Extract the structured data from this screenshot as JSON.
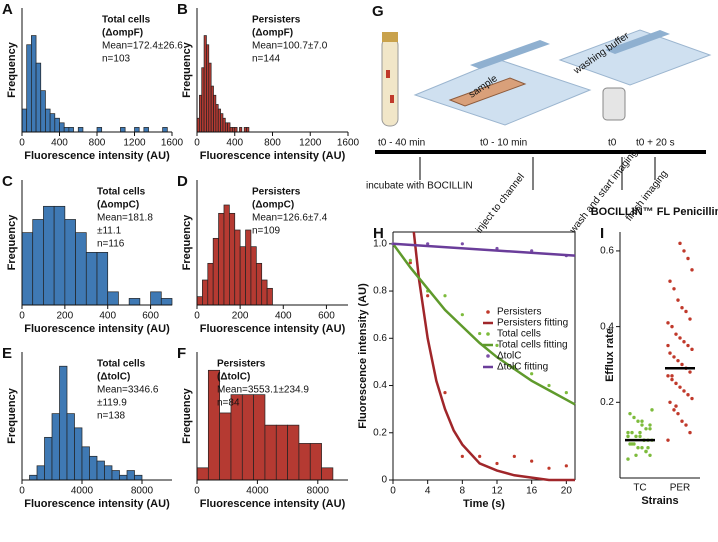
{
  "chart_data": [
    {
      "type": "histogram",
      "panel": "A",
      "xlabel": "Fluorescence intensity (AU)",
      "ylabel": "Frequency",
      "annotations": [
        "Total cells",
        "(ΔompF)",
        "Mean=172.4±26.6",
        "n=103"
      ],
      "color": "#3f79b4",
      "bins": [
        0,
        50,
        100,
        150,
        200,
        250,
        300,
        350,
        400,
        450,
        500,
        550,
        600,
        650,
        700,
        750,
        800,
        850,
        900,
        950,
        1000,
        1050,
        1100,
        1150,
        1200,
        1250,
        1300,
        1350,
        1400,
        1450,
        1500,
        1550,
        1600
      ],
      "counts": [
        0.05,
        0.19,
        0.21,
        0.15,
        0.09,
        0.05,
        0.04,
        0.03,
        0.02,
        0.01,
        0.01,
        0,
        0.01,
        0,
        0,
        0,
        0.01,
        0,
        0,
        0,
        0,
        0.01,
        0,
        0,
        0.01,
        0,
        0.01,
        0,
        0,
        0,
        0.01,
        0
      ],
      "xlim": [
        0,
        1600
      ],
      "xticks": [
        0,
        400,
        800,
        1200,
        1600
      ],
      "ylim": [
        0,
        0.27
      ]
    },
    {
      "type": "histogram",
      "panel": "B",
      "xlabel": "Fluorescence intensity (AU)",
      "ylabel": "Frequency",
      "annotations": [
        "Persisters",
        "(ΔompF)",
        "Mean=100.7±7.0",
        "n=144"
      ],
      "color": "#b53a32",
      "bins": [
        0,
        25,
        50,
        75,
        100,
        125,
        150,
        175,
        200,
        225,
        250,
        275,
        300,
        325,
        350,
        375,
        400,
        425,
        450,
        475,
        500,
        525,
        550
      ],
      "counts": [
        0.03,
        0.08,
        0.14,
        0.21,
        0.19,
        0.15,
        0.1,
        0.08,
        0.06,
        0.05,
        0.04,
        0.03,
        0.02,
        0.02,
        0.01,
        0.01,
        0.01,
        0,
        0.01,
        0,
        0.01,
        0.01
      ],
      "xlim": [
        0,
        1600
      ],
      "xticks": [
        0,
        400,
        800,
        1200,
        1600
      ],
      "ylim": [
        0,
        0.27
      ]
    },
    {
      "type": "histogram",
      "panel": "C",
      "xlabel": "Fluorescence intensity (AU)",
      "ylabel": "Frequency",
      "annotations": [
        "Total cells",
        "(ΔompC)",
        "Mean=181.8",
        "±11.1",
        "n=116"
      ],
      "color": "#3f79b4",
      "bins": [
        0,
        50,
        100,
        150,
        200,
        250,
        300,
        350,
        400,
        450,
        500,
        550,
        600,
        650,
        700
      ],
      "counts": [
        0.11,
        0.13,
        0.15,
        0.15,
        0.13,
        0.11,
        0.08,
        0.08,
        0.02,
        0,
        0.01,
        0,
        0.02,
        0.01
      ],
      "xlim": [
        0,
        700
      ],
      "xticks": [
        0,
        200,
        400,
        600
      ],
      "ylim": [
        0,
        0.19
      ]
    },
    {
      "type": "histogram",
      "panel": "D",
      "xlabel": "Fluorescence intensity (AU)",
      "ylabel": "Frequency",
      "annotations": [
        "Persisters",
        "(ΔompC)",
        "Mean=126.6±7.4",
        "n=109"
      ],
      "color": "#b53a32",
      "bins": [
        0,
        25,
        50,
        75,
        100,
        125,
        150,
        175,
        200,
        225,
        250,
        275,
        300,
        325,
        350
      ],
      "counts": [
        0.01,
        0.03,
        0.05,
        0.08,
        0.11,
        0.12,
        0.11,
        0.09,
        0.07,
        0.09,
        0.07,
        0.05,
        0.03,
        0.02
      ],
      "xlim": [
        0,
        700
      ],
      "xticks": [
        0,
        200,
        400,
        600
      ],
      "ylim": [
        0,
        0.15
      ]
    },
    {
      "type": "histogram",
      "panel": "E",
      "xlabel": "Fluorescence intensity (AU)",
      "ylabel": "Frequency",
      "annotations": [
        "Total cells",
        "(ΔtolC)",
        "Mean=3346.6",
        "±119.9",
        "n=138"
      ],
      "color": "#3f79b4",
      "bins": [
        0,
        500,
        1000,
        1500,
        2000,
        2500,
        3000,
        3500,
        4000,
        4500,
        5000,
        5500,
        6000,
        6500,
        7000,
        7500,
        8000
      ],
      "counts": [
        0,
        0.01,
        0.03,
        0.09,
        0.14,
        0.24,
        0.14,
        0.11,
        0.07,
        0.05,
        0.04,
        0.03,
        0.02,
        0.01,
        0.02,
        0.01
      ],
      "xlim": [
        0,
        10000
      ],
      "xticks": [
        0,
        4000,
        8000
      ],
      "ylim": [
        0,
        0.27
      ]
    },
    {
      "type": "histogram",
      "panel": "F",
      "xlabel": "Fluorescence intensity (AU)",
      "ylabel": "Frequency",
      "annotations": [
        "Persisters",
        "(ΔtolC)",
        "Mean=3553.1±234.9",
        "n=84"
      ],
      "color": "#b53a32",
      "bins": [
        0,
        750,
        1500,
        2250,
        3000,
        3750,
        4500,
        5250,
        6000,
        6750,
        7500,
        8250,
        9000
      ],
      "counts": [
        0.02,
        0.18,
        0.11,
        0.14,
        0.14,
        0.14,
        0.09,
        0.09,
        0.09,
        0.06,
        0.06,
        0.02
      ],
      "xlim": [
        0,
        10000
      ],
      "xticks": [
        0,
        4000,
        8000
      ],
      "ylim": [
        0,
        0.21
      ]
    },
    {
      "type": "line",
      "panel": "H",
      "xlabel": "Time (s)",
      "ylabel": "Fluorescence intensity (AU)",
      "xlim": [
        0,
        21
      ],
      "xticks": [
        0,
        4,
        8,
        12,
        16,
        20
      ],
      "ylim": [
        0,
        1.05
      ],
      "yticks": [
        0,
        0.2,
        0.4,
        0.6,
        0.8,
        {
          "value": 1,
          "label": "1.0"
        }
      ],
      "series": [
        {
          "name": "Persisters",
          "color": "#c0392b",
          "style": "points",
          "x": [
            2,
            4,
            6,
            8,
            10,
            12,
            14,
            16,
            18,
            20
          ],
          "values": [
            0.92,
            0.78,
            0.37,
            0.1,
            0.1,
            0.07,
            0.1,
            0.08,
            0.05,
            0.06
          ]
        },
        {
          "name": "Persisters fitting",
          "color": "#a0262a",
          "style": "line",
          "x": [
            2.4,
            3,
            4,
            5,
            6,
            7,
            8,
            10,
            12,
            14,
            16,
            18,
            21
          ],
          "values": [
            1.05,
            0.85,
            0.6,
            0.42,
            0.3,
            0.21,
            0.15,
            0.07,
            0.04,
            0.02,
            0.01,
            0,
            0
          ]
        },
        {
          "name": "Total cells",
          "color": "#7dbb3c",
          "style": "points",
          "x": [
            0,
            2,
            4,
            6,
            8,
            10,
            12,
            14,
            16,
            18,
            20
          ],
          "values": [
            1,
            0.93,
            0.8,
            0.78,
            0.7,
            0.62,
            0.57,
            0.48,
            0.45,
            0.4,
            0.37
          ]
        },
        {
          "name": "Total cells fitting",
          "color": "#5f9a2c",
          "style": "line",
          "x": [
            0,
            2,
            4,
            6,
            8,
            10,
            12,
            14,
            16,
            18,
            20,
            21
          ],
          "values": [
            1,
            0.9,
            0.81,
            0.72,
            0.65,
            0.58,
            0.52,
            0.47,
            0.42,
            0.38,
            0.34,
            0.32
          ]
        },
        {
          "name": "ΔtolC",
          "color": "#7b4fa8",
          "style": "points",
          "x": [
            0,
            4,
            8,
            12,
            16,
            20
          ],
          "values": [
            1,
            1,
            1,
            0.98,
            0.97,
            0.95
          ]
        },
        {
          "name": "ΔtolC fitting",
          "color": "#6a3d9a",
          "style": "line",
          "x": [
            0,
            21
          ],
          "values": [
            1,
            0.95
          ]
        }
      ]
    },
    {
      "type": "strip",
      "panel": "I",
      "title": "BOCILLIN™ FL Penicillin",
      "ylabel": "Efflux rate",
      "xlabel": "Strains",
      "categories": [
        "TC",
        "PER"
      ],
      "ylim": [
        0,
        0.65
      ],
      "yticks": [
        0.2,
        0.4,
        0.6
      ],
      "groups": [
        {
          "color": "#7dbb3c",
          "mean": 0.1,
          "values": [
            0.05,
            0.06,
            0.07,
            0.08,
            0.08,
            0.09,
            0.09,
            0.1,
            0.1,
            0.1,
            0.11,
            0.11,
            0.12,
            0.12,
            0.13,
            0.13,
            0.14,
            0.15,
            0.16,
            0.17,
            0.18,
            0.08,
            0.1,
            0.12,
            0.06,
            0.09,
            0.11,
            0.14,
            0.07,
            0.15
          ]
        },
        {
          "color": "#c0392b",
          "mean": 0.29,
          "values": [
            0.1,
            0.12,
            0.14,
            0.15,
            0.17,
            0.18,
            0.2,
            0.21,
            0.22,
            0.23,
            0.24,
            0.25,
            0.26,
            0.27,
            0.28,
            0.29,
            0.3,
            0.31,
            0.32,
            0.33,
            0.34,
            0.35,
            0.36,
            0.37,
            0.38,
            0.4,
            0.41,
            0.42,
            0.44,
            0.45,
            0.47,
            0.5,
            0.52,
            0.55,
            0.58,
            0.6,
            0.62,
            0.19,
            0.27,
            0.35
          ]
        }
      ]
    }
  ],
  "diagram": {
    "panel": "G",
    "sample": "sample",
    "buffer": "washing buffer",
    "times": [
      "t0 - 40 min",
      "t0 - 10 min",
      "t0",
      "t0 + 20 s"
    ],
    "steps": [
      "incubate with BOCILLIN",
      "inject to channel",
      "wash and start imaging",
      "finish imaging"
    ]
  }
}
